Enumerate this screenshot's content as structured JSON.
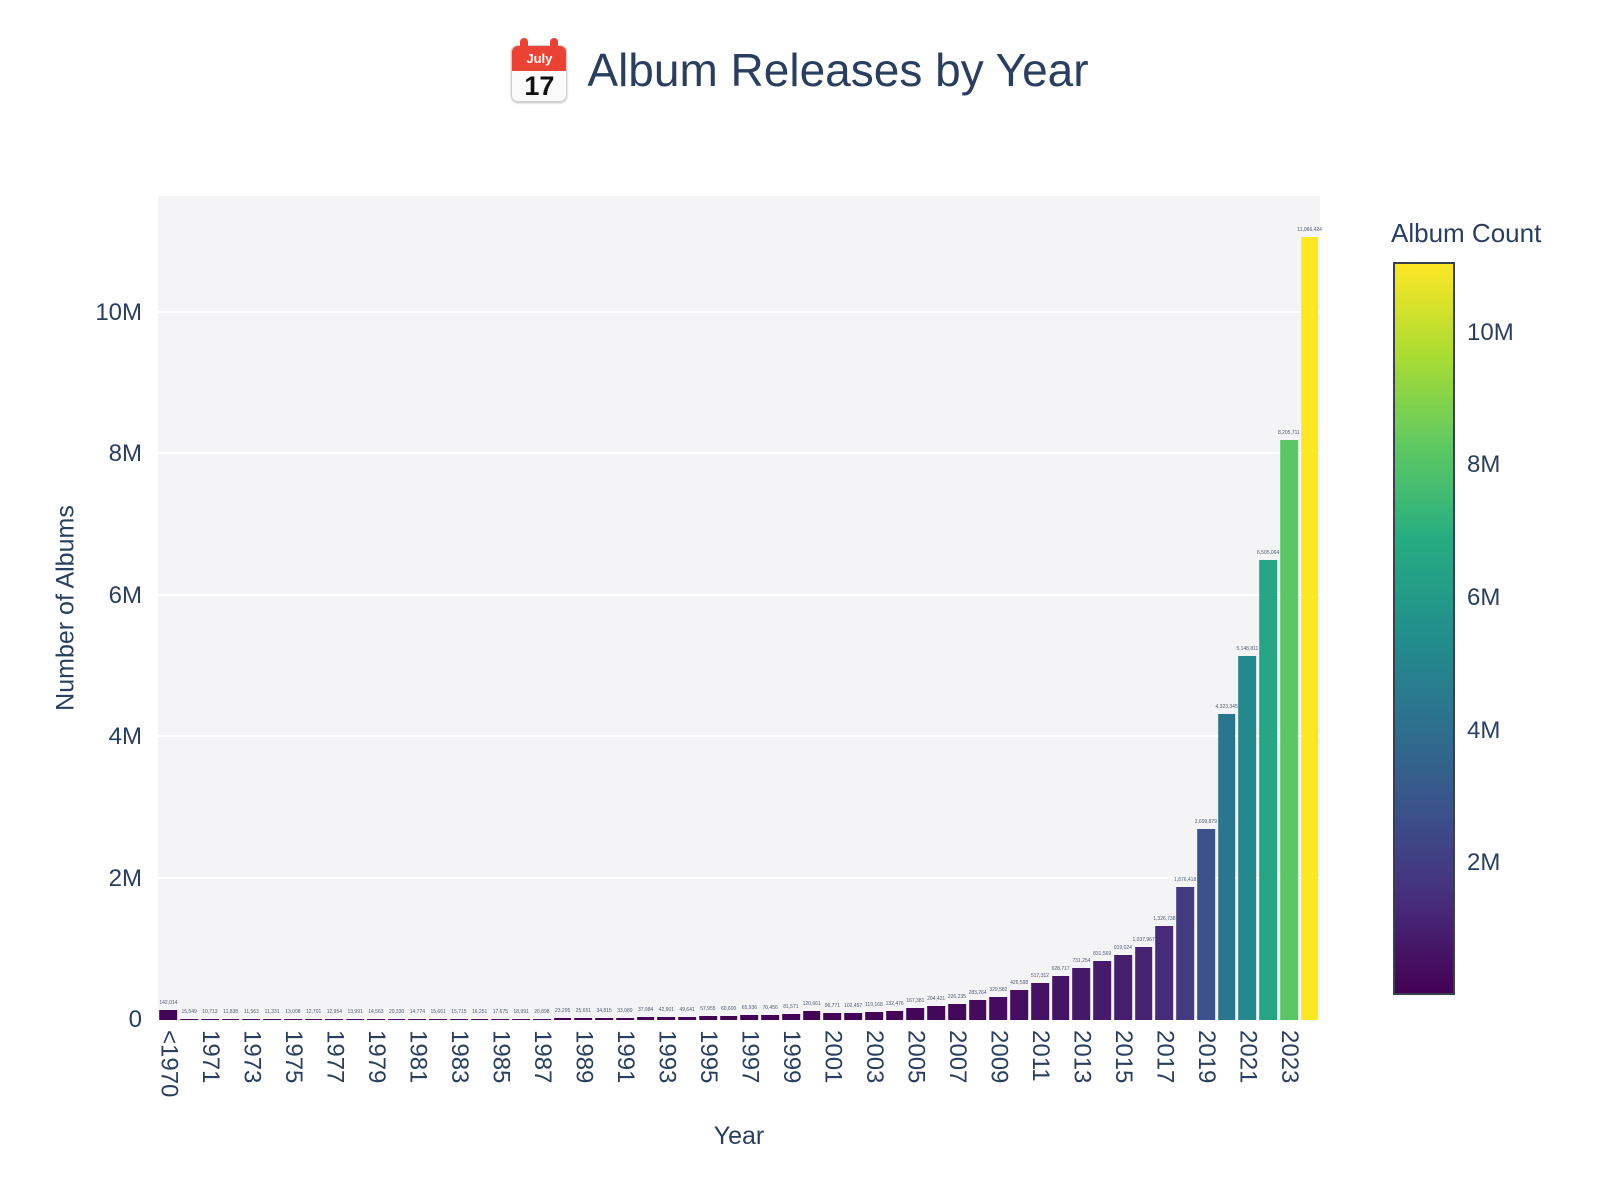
{
  "title": {
    "text": "Album Releases by Year",
    "emoji_name": "calendar-emoji",
    "emoji_month": "July",
    "emoji_day": "17"
  },
  "axes": {
    "x_title": "Year",
    "y_title": "Number of Albums",
    "y_ticks": [
      {
        "label": "0",
        "value": 0
      },
      {
        "label": "2M",
        "value": 2000000
      },
      {
        "label": "4M",
        "value": 4000000
      },
      {
        "label": "6M",
        "value": 6000000
      },
      {
        "label": "8M",
        "value": 8000000
      },
      {
        "label": "10M",
        "value": 10000000
      }
    ]
  },
  "colorbar": {
    "title": "Album Count",
    "ticks": [
      {
        "label": "2M",
        "value": 2000000
      },
      {
        "label": "4M",
        "value": 4000000
      },
      {
        "label": "6M",
        "value": 6000000
      },
      {
        "label": "8M",
        "value": 8000000
      },
      {
        "label": "10M",
        "value": 10000000
      }
    ]
  },
  "colors": {
    "text": "#2a3f5f",
    "plot_bg": "#f4f4f6",
    "grid": "#ffffff",
    "bar_label": "#4c5b73",
    "calendar_red": "#ea4335",
    "viridis_stops": [
      {
        "t": 0.0,
        "c": "#440154"
      },
      {
        "t": 0.125,
        "c": "#472d7b"
      },
      {
        "t": 0.25,
        "c": "#3b528b"
      },
      {
        "t": 0.375,
        "c": "#2c728e"
      },
      {
        "t": 0.5,
        "c": "#21918c"
      },
      {
        "t": 0.625,
        "c": "#27ad81"
      },
      {
        "t": 0.75,
        "c": "#5ec962"
      },
      {
        "t": 0.875,
        "c": "#aadc32"
      },
      {
        "t": 1.0,
        "c": "#fde725"
      }
    ]
  },
  "chart_data": {
    "type": "bar",
    "title": "Album Releases by Year",
    "xlabel": "Year",
    "ylabel": "Number of Albums",
    "legend_title": "Album Count",
    "y_axis_max": 11650000,
    "color_domain": [
      10713,
      11066424
    ],
    "grid": true,
    "categories": [
      "<1970",
      "1970",
      "1971",
      "1972",
      "1973",
      "1974",
      "1975",
      "1976",
      "1977",
      "1978",
      "1979",
      "1980",
      "1981",
      "1982",
      "1983",
      "1984",
      "1985",
      "1986",
      "1987",
      "1988",
      "1989",
      "1990",
      "1991",
      "1992",
      "1993",
      "1994",
      "1995",
      "1996",
      "1997",
      "1998",
      "1999",
      "2000",
      "2001",
      "2002",
      "2003",
      "2004",
      "2005",
      "2006",
      "2007",
      "2008",
      "2009",
      "2010",
      "2011",
      "2012",
      "2013",
      "2014",
      "2015",
      "2016",
      "2017",
      "2018",
      "2019",
      "2020",
      "2021",
      "2022",
      "2023",
      "2024"
    ],
    "values": [
      142014,
      15549,
      10713,
      11838,
      11563,
      11331,
      13008,
      12701,
      12954,
      13991,
      14563,
      20330,
      14774,
      15661,
      15715,
      16251,
      17675,
      18991,
      20898,
      23295,
      25651,
      34815,
      33089,
      37984,
      42901,
      49641,
      57955,
      60600,
      65936,
      70456,
      81571,
      120661,
      96771,
      102457,
      119168,
      132476,
      167381,
      204421,
      226235,
      283264,
      329582,
      426598,
      517312,
      628717,
      731254,
      831569,
      919024,
      1037967,
      1326738,
      1876418,
      2699879,
      4323345,
      5148811,
      6505064,
      8205711,
      11066424
    ],
    "x_tick_every": 2,
    "x_tick_labels": [
      "<1970",
      "1971",
      "1973",
      "1975",
      "1977",
      "1979",
      "1981",
      "1983",
      "1985",
      "1987",
      "1989",
      "1991",
      "1993",
      "1995",
      "1997",
      "1999",
      "2001",
      "2003",
      "2005",
      "2007",
      "2009",
      "2011",
      "2013",
      "2015",
      "2017",
      "2019",
      "2021",
      "2023"
    ]
  }
}
